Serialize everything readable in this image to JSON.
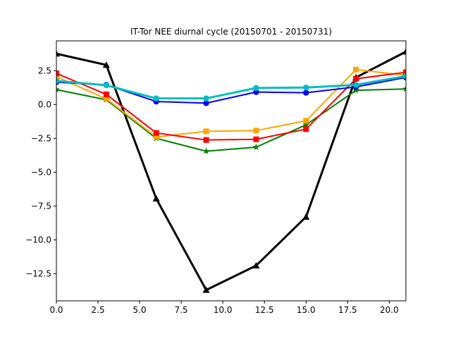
{
  "chart_data": {
    "type": "line",
    "title": "IT-Tor NEE diurnal cycle (20150701 - 20150731)",
    "xlabel": "",
    "ylabel": "",
    "xlim": [
      0,
      21
    ],
    "ylim": [
      -14.5,
      4.7
    ],
    "grid": false,
    "x": [
      0,
      3,
      6,
      9,
      12,
      15,
      18,
      21
    ],
    "x_ticks": [
      0.0,
      2.5,
      5.0,
      7.5,
      10.0,
      12.5,
      15.0,
      17.5,
      20.0
    ],
    "x_tick_labels": [
      "0.0",
      "2.5",
      "5.0",
      "7.5",
      "10.0",
      "12.5",
      "15.0",
      "17.5",
      "20.0"
    ],
    "y_ticks": [
      -12.5,
      -10.0,
      -7.5,
      -5.0,
      -2.5,
      0.0,
      2.5
    ],
    "y_tick_labels": [
      "−12.5",
      "−10.0",
      "−7.5",
      "−5.0",
      "−2.5",
      "0.0",
      "2.5"
    ],
    "series": [
      {
        "color": "#000000",
        "marker": "triangle",
        "line_width": 3,
        "values": [
          3.75,
          2.92,
          -6.95,
          -13.7,
          -11.9,
          -8.3,
          2.0,
          3.9
        ]
      },
      {
        "color": "#008000",
        "marker": "star",
        "line_width": 2,
        "values": [
          1.1,
          0.35,
          -2.5,
          -3.45,
          -3.15,
          -1.5,
          1.05,
          1.15
        ]
      },
      {
        "color": "#ffa500",
        "marker": "square",
        "line_width": 2,
        "values": [
          2.05,
          0.42,
          -2.4,
          -1.98,
          -1.93,
          -1.2,
          2.58,
          2.15
        ]
      },
      {
        "color": "#ff0000",
        "marker": "square",
        "line_width": 2,
        "values": [
          2.3,
          0.75,
          -2.1,
          -2.62,
          -2.57,
          -1.82,
          1.9,
          2.38
        ]
      },
      {
        "color": "#0000ff",
        "marker": "circle",
        "line_width": 2,
        "values": [
          1.65,
          1.45,
          0.22,
          0.1,
          0.92,
          0.87,
          1.3,
          2.0
        ]
      },
      {
        "color": "#00bfbf",
        "marker": "circle",
        "line_width": 3,
        "values": [
          1.75,
          1.42,
          0.45,
          0.45,
          1.22,
          1.25,
          1.45,
          2.1
        ]
      }
    ]
  }
}
